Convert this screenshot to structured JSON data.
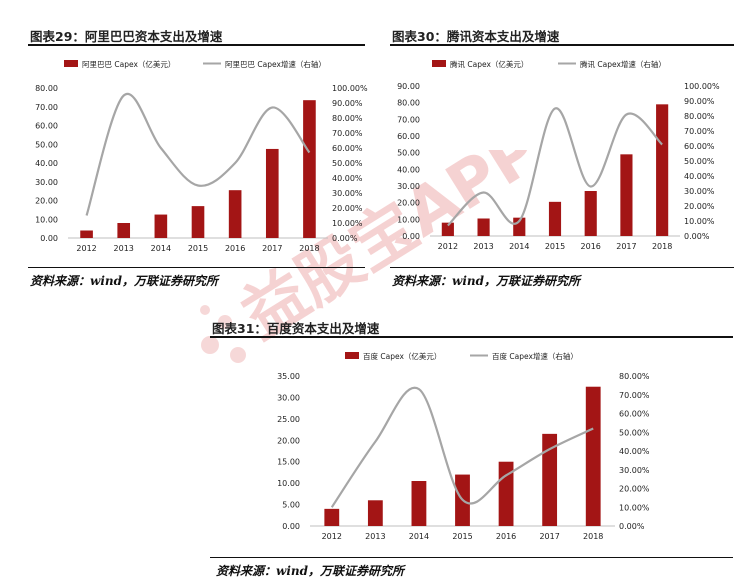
{
  "figures": [
    {
      "title": "图表29：阿里巴巴资本支出及增速",
      "source": "资料来源：wind，万联证券研究所",
      "legend": {
        "bar": "阿里巴巴 Capex（亿美元）",
        "line": "阿里巴巴 Capex增速（右轴）"
      }
    },
    {
      "title": "图表30：腾讯资本支出及增速",
      "source": "资料来源：wind，万联证券研究所",
      "legend": {
        "bar": "腾讯 Capex（亿美元）",
        "line": "腾讯 Capex增速（右轴）"
      }
    },
    {
      "title": "图表31：百度资本支出及增速",
      "source": "资料来源：wind，万联证券研究所",
      "legend": {
        "bar": "百度 Capex（亿美元）",
        "line": "百度 Capex增速（右轴）"
      }
    }
  ],
  "watermark": "益股宝APP",
  "colors": {
    "bar": "#a31515",
    "line": "#a6a6a6",
    "watermark": "#f3c8c8"
  },
  "chart_data": [
    {
      "type": "bar",
      "categories": [
        "2012",
        "2013",
        "2014",
        "2015",
        "2016",
        "2017",
        "2018"
      ],
      "series": [
        {
          "name": "阿里巴巴 Capex（亿美元）",
          "axis": "left",
          "values": [
            4.0,
            8.0,
            12.5,
            17.0,
            25.5,
            47.5,
            73.5
          ]
        },
        {
          "name": "阿里巴巴 Capex增速（右轴）",
          "axis": "right",
          "type": "line",
          "values": [
            0.15,
            0.95,
            0.6,
            0.35,
            0.5,
            0.87,
            0.57
          ]
        }
      ],
      "ylim_left": [
        0,
        80
      ],
      "ytick_step_left": 10,
      "ytick_labels_left": [
        "0.00",
        "10.00",
        "20.00",
        "30.00",
        "40.00",
        "50.00",
        "60.00",
        "70.00",
        "80.00"
      ],
      "ylim_right": [
        0,
        1.0
      ],
      "ytick_step_right": 0.1,
      "ytick_labels_right": [
        "0.00%",
        "10.00%",
        "20.00%",
        "30.00%",
        "40.00%",
        "50.00%",
        "60.00%",
        "70.00%",
        "80.00%",
        "90.00%",
        "100.00%"
      ],
      "legend_position": "top",
      "grid": false
    },
    {
      "type": "bar",
      "categories": [
        "2012",
        "2013",
        "2014",
        "2015",
        "2016",
        "2017",
        "2018"
      ],
      "series": [
        {
          "name": "腾讯 Capex（亿美元）",
          "axis": "left",
          "values": [
            8.0,
            10.5,
            11.0,
            20.5,
            27.0,
            49.0,
            79.0
          ]
        },
        {
          "name": "腾讯 Capex增速（右轴）",
          "axis": "right",
          "type": "line",
          "values": [
            0.07,
            0.29,
            0.1,
            0.85,
            0.33,
            0.81,
            0.61
          ]
        }
      ],
      "ylim_left": [
        0,
        90
      ],
      "ytick_step_left": 10,
      "ytick_labels_left": [
        "0.00",
        "10.00",
        "20.00",
        "30.00",
        "40.00",
        "50.00",
        "60.00",
        "70.00",
        "80.00",
        "90.00"
      ],
      "ylim_right": [
        0,
        1.0
      ],
      "ytick_step_right": 0.1,
      "ytick_labels_right": [
        "0.00%",
        "10.00%",
        "20.00%",
        "30.00%",
        "40.00%",
        "50.00%",
        "60.00%",
        "70.00%",
        "80.00%",
        "90.00%",
        "100.00%"
      ],
      "legend_position": "top",
      "grid": false
    },
    {
      "type": "bar",
      "categories": [
        "2012",
        "2013",
        "2014",
        "2015",
        "2016",
        "2017",
        "2018"
      ],
      "series": [
        {
          "name": "百度 Capex（亿美元）",
          "axis": "left",
          "values": [
            4.0,
            6.0,
            10.5,
            12.0,
            15.0,
            21.5,
            32.5
          ]
        },
        {
          "name": "百度 Capex增速（右轴）",
          "axis": "right",
          "type": "line",
          "values": [
            0.1,
            0.45,
            0.73,
            0.14,
            0.27,
            0.41,
            0.52
          ]
        }
      ],
      "ylim_left": [
        0,
        35
      ],
      "ytick_step_left": 5,
      "ytick_labels_left": [
        "0.00",
        "5.00",
        "10.00",
        "15.00",
        "20.00",
        "25.00",
        "30.00",
        "35.00"
      ],
      "ylim_right": [
        0,
        0.8
      ],
      "ytick_step_right": 0.1,
      "ytick_labels_right": [
        "0.00%",
        "10.00%",
        "20.00%",
        "30.00%",
        "40.00%",
        "50.00%",
        "60.00%",
        "70.00%",
        "80.00%"
      ],
      "legend_position": "top",
      "grid": false
    }
  ]
}
